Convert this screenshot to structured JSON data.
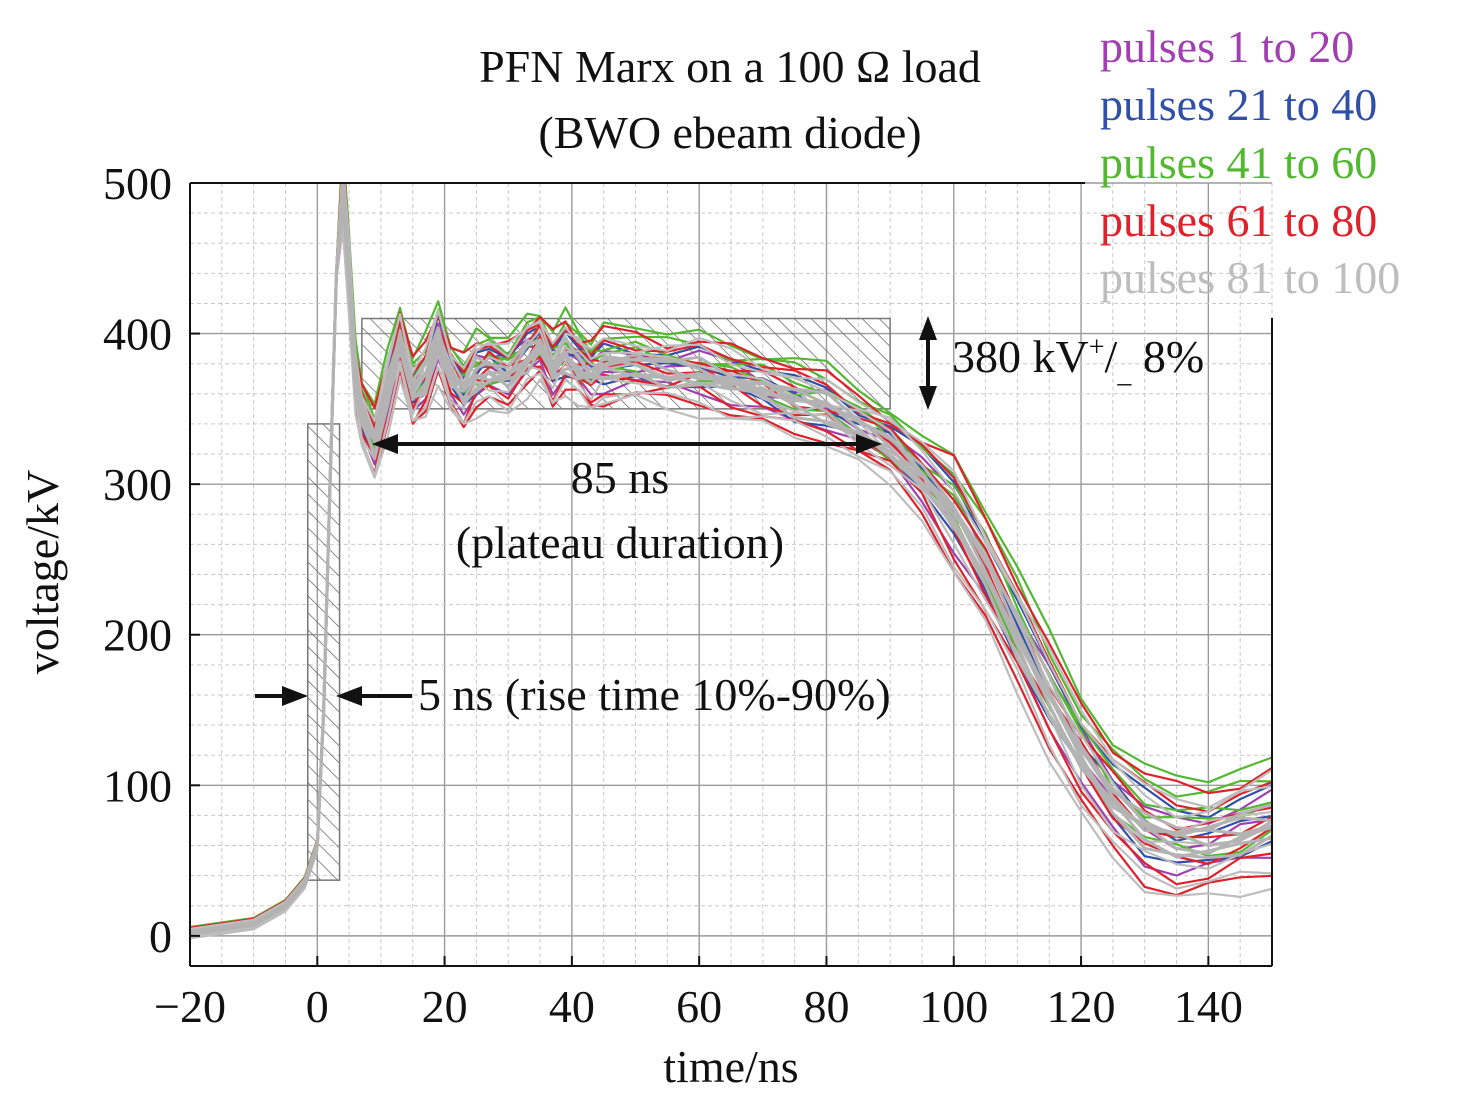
{
  "chart_data": {
    "type": "line",
    "title_line1": "PFN Marx on a 100 Ω load",
    "title_line2": "(BWO ebeam diode)",
    "xlabel": "time/ns",
    "ylabel": "voltage/kV",
    "xlim": [
      -20,
      150
    ],
    "ylim": [
      -20,
      500
    ],
    "x_ticks": [
      -20,
      0,
      20,
      40,
      60,
      80,
      100,
      120,
      140
    ],
    "x_tick_labels": [
      "−20",
      "0",
      "20",
      "40",
      "60",
      "80",
      "100",
      "120",
      "140"
    ],
    "y_ticks": [
      0,
      100,
      200,
      300,
      400,
      500
    ],
    "y_tick_labels": [
      "0",
      "100",
      "200",
      "300",
      "400",
      "500"
    ],
    "grid": true,
    "legend_position": "top-right, outside plot",
    "series": [
      {
        "name": "pulses 1 to 20",
        "color": "#a040b0"
      },
      {
        "name": "pulses 21 to 40",
        "color": "#2f4fa8"
      },
      {
        "name": "pulses 41 to 60",
        "color": "#52b830"
      },
      {
        "name": "pulses 61 to 80",
        "color": "#e0202a"
      },
      {
        "name": "pulses 81 to 100",
        "color": "#bdbdbd"
      }
    ],
    "waveform_x": [
      -20,
      -10,
      -5,
      -2,
      0,
      1,
      2,
      3,
      4,
      5,
      6,
      7,
      9,
      11,
      13,
      15,
      17,
      19,
      21,
      23,
      25,
      27,
      30,
      33,
      35,
      37,
      39,
      41,
      43,
      45,
      50,
      55,
      60,
      65,
      70,
      75,
      80,
      85,
      90,
      95,
      100,
      105,
      110,
      115,
      120,
      125,
      130,
      135,
      140,
      145,
      150
    ],
    "waveform_center_y": [
      2,
      8,
      20,
      35,
      60,
      150,
      300,
      440,
      495,
      440,
      370,
      345,
      325,
      360,
      395,
      360,
      370,
      395,
      370,
      360,
      372,
      375,
      372,
      385,
      392,
      375,
      385,
      378,
      372,
      377,
      378,
      374,
      374,
      368,
      362,
      355,
      350,
      338,
      325,
      305,
      278,
      242,
      200,
      158,
      120,
      90,
      70,
      62,
      62,
      68,
      75
    ],
    "annotations": {
      "plateau_level": "380 kV",
      "plateau_tolerance_sup": "+",
      "plateau_tolerance_sub": "_",
      "plateau_tolerance_value": " 8%",
      "plateau_duration": "85 ns",
      "plateau_duration_note": "(plateau duration)",
      "rise_time": "5 ns (rise time 10%-90%)"
    }
  }
}
